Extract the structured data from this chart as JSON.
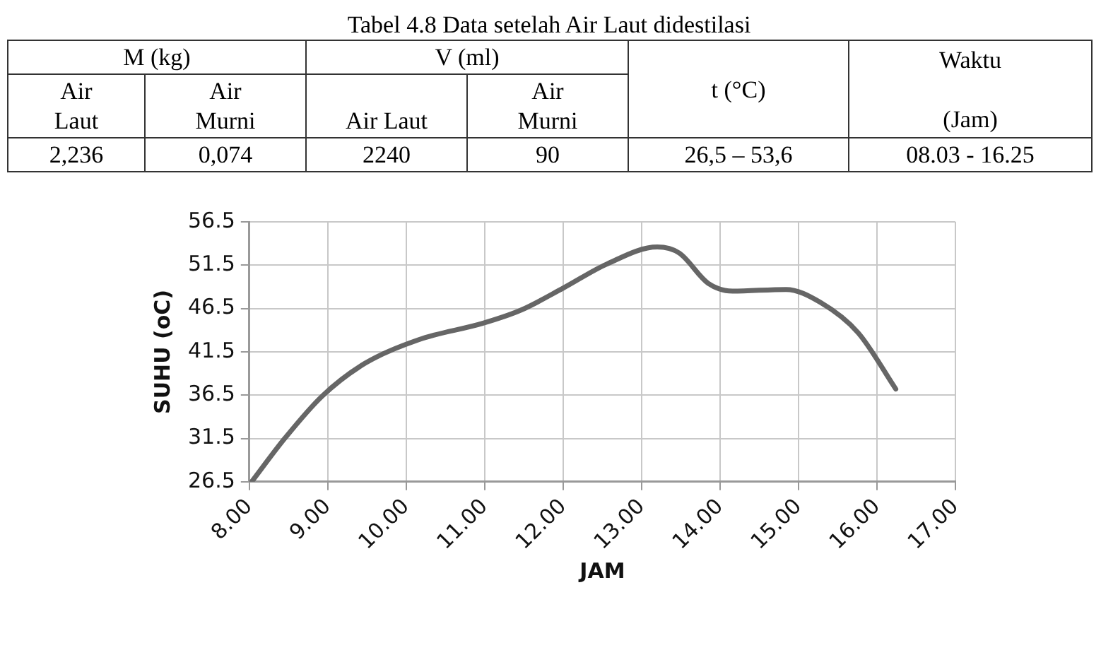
{
  "chart_data": [
    {
      "type": "other",
      "title": "Tabel 4.8  Data setelah Air Laut didestilasi",
      "annotations": [
        "M (kg)",
        "V (ml)",
        "t (°C)",
        "Waktu",
        "(Jam)",
        "Air Laut",
        "Air Murni",
        "Air Laut",
        "Air Murni",
        "2,236",
        "0,074",
        "2240",
        "90",
        "26,5 – 53,6",
        "08.03 - 16.25"
      ]
    },
    {
      "type": "line",
      "xlabel": "JAM",
      "ylabel": "SUHU (oC)",
      "x": [
        8.03,
        8.46,
        8.93,
        9.48,
        10.16,
        10.98,
        11.46,
        12.01,
        12.55,
        13.2,
        13.48,
        13.85,
        14.16,
        14.84,
        15.28,
        15.76,
        16.24
      ],
      "series": [
        {
          "color": "#666666",
          "values": [
            26.5,
            31.6,
            36.4,
            40.2,
            42.9,
            44.8,
            46.3,
            48.9,
            51.6,
            53.6,
            52.9,
            49.4,
            48.5,
            48.7,
            47.2,
            43.7,
            37.2
          ]
        }
      ],
      "xlim": [
        8,
        17
      ],
      "xticks": [
        {
          "value": 8,
          "label": "8.00"
        },
        {
          "value": 9,
          "label": "9.00"
        },
        {
          "value": 10,
          "label": "10.00"
        },
        {
          "value": 11,
          "label": "11.00"
        },
        {
          "value": 12,
          "label": "12.00"
        },
        {
          "value": 13,
          "label": "13.00"
        },
        {
          "value": 14,
          "label": "14.00"
        },
        {
          "value": 15,
          "label": "15.00"
        },
        {
          "value": 16,
          "label": "16.00"
        },
        {
          "value": 17,
          "label": "17.00"
        }
      ],
      "ylim": [
        26.5,
        56.5
      ],
      "yticks": [
        26.5,
        31.5,
        36.5,
        41.5,
        46.5,
        51.5,
        56.5
      ],
      "grid": true,
      "legend": false,
      "marker": "none",
      "line_style": "solid"
    }
  ]
}
